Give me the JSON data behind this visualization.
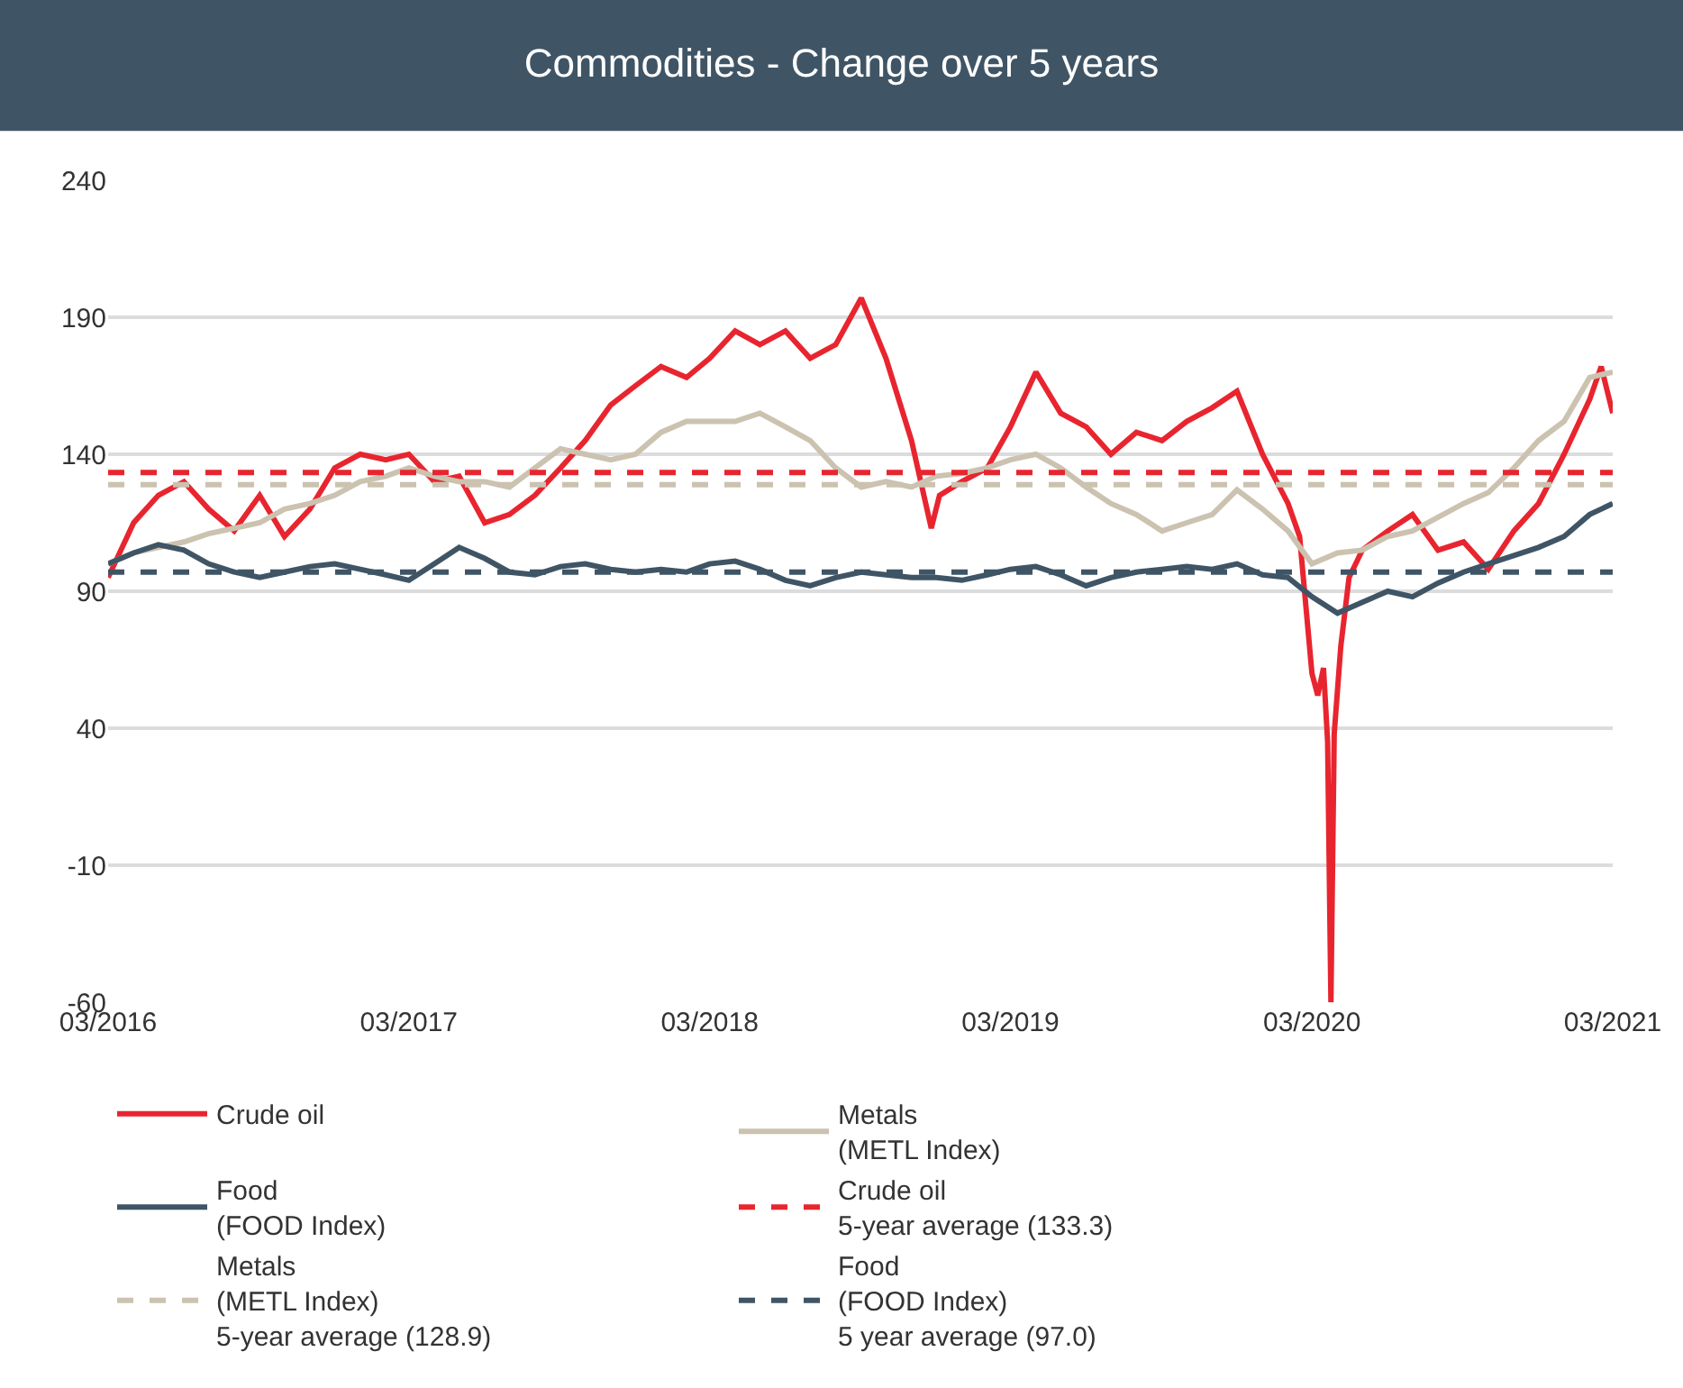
{
  "chart_data": {
    "type": "line",
    "title": "Commodities - Change over 5 years",
    "x": [
      "2016-03",
      "2016-04",
      "2016-05",
      "2016-06",
      "2016-07",
      "2016-08",
      "2016-09",
      "2016-10",
      "2016-11",
      "2016-12",
      "2017-01",
      "2017-02",
      "2017-03",
      "2017-04",
      "2017-05",
      "2017-06",
      "2017-07",
      "2017-08",
      "2017-09",
      "2017-10",
      "2017-11",
      "2017-12",
      "2018-01",
      "2018-02",
      "2018-03",
      "2018-04",
      "2018-05",
      "2018-06",
      "2018-07",
      "2018-08",
      "2018-09",
      "2018-10",
      "2018-11",
      "2018-12",
      "2019-01",
      "2019-02",
      "2019-03",
      "2019-04",
      "2019-05",
      "2019-06",
      "2019-07",
      "2019-08",
      "2019-09",
      "2019-10",
      "2019-11",
      "2019-12",
      "2020-01",
      "2020-02",
      "2020-03",
      "2020-04",
      "2020-05",
      "2020-06",
      "2020-07",
      "2020-08",
      "2020-09",
      "2020-10",
      "2020-11",
      "2020-12",
      "2021-01",
      "2021-02",
      "2021-03"
    ],
    "series": [
      {
        "name": "Crude oil",
        "color": "#e8252f",
        "x": [
          "2016-03-01",
          "2016-04-01",
          "2016-05-01",
          "2016-06-01",
          "2016-07-01",
          "2016-08-01",
          "2016-09-01",
          "2016-10-01",
          "2016-11-01",
          "2016-12-01",
          "2017-01-01",
          "2017-02-01",
          "2017-03-01",
          "2017-04-01",
          "2017-05-01",
          "2017-06-01",
          "2017-07-01",
          "2017-08-01",
          "2017-09-01",
          "2017-10-01",
          "2017-11-01",
          "2017-12-01",
          "2018-01-01",
          "2018-02-01",
          "2018-03-01",
          "2018-04-01",
          "2018-05-01",
          "2018-06-01",
          "2018-07-01",
          "2018-08-01",
          "2018-09-01",
          "2018-10-01",
          "2018-11-01",
          "2018-11-25",
          "2018-12-05",
          "2019-01-01",
          "2019-02-01",
          "2019-03-01",
          "2019-04-01",
          "2019-05-01",
          "2019-06-01",
          "2019-07-01",
          "2019-08-01",
          "2019-09-01",
          "2019-10-01",
          "2019-11-01",
          "2019-12-01",
          "2020-01-01",
          "2020-02-01",
          "2020-02-15",
          "2020-03-01",
          "2020-03-08",
          "2020-03-15",
          "2020-03-20",
          "2020-03-24",
          "2020-03-28",
          "2020-04-05",
          "2020-04-15",
          "2020-05-01",
          "2020-06-01",
          "2020-07-01",
          "2020-08-01",
          "2020-09-01",
          "2020-10-01",
          "2020-11-01",
          "2020-12-01",
          "2021-01-01",
          "2021-02-01",
          "2021-02-15",
          "2021-03-01"
        ],
        "values": [
          95,
          115,
          125,
          130,
          120,
          112,
          125,
          110,
          120,
          135,
          140,
          138,
          140,
          130,
          132,
          115,
          118,
          125,
          135,
          145,
          158,
          165,
          172,
          168,
          175,
          185,
          180,
          185,
          175,
          180,
          197,
          175,
          145,
          113,
          125,
          130,
          135,
          150,
          170,
          155,
          150,
          140,
          148,
          145,
          152,
          157,
          163,
          140,
          122,
          110,
          60,
          52,
          62,
          35,
          -60,
          38,
          70,
          95,
          105,
          112,
          118,
          105,
          108,
          98,
          112,
          122,
          140,
          160,
          172,
          155
        ]
      },
      {
        "name": "Metals\n(METL Index)",
        "color": "#cbc2b0",
        "values": [
          100,
          104,
          106,
          108,
          111,
          113,
          115,
          120,
          122,
          125,
          130,
          132,
          135,
          132,
          130,
          130,
          128,
          135,
          142,
          140,
          138,
          140,
          148,
          152,
          152,
          152,
          155,
          150,
          145,
          135,
          128,
          130,
          128,
          132,
          133,
          135,
          138,
          140,
          135,
          128,
          122,
          118,
          112,
          115,
          118,
          127,
          120,
          112,
          100,
          104,
          105,
          110,
          112,
          117,
          122,
          126,
          135,
          145,
          152,
          168,
          170
        ]
      },
      {
        "name": "Food\n(FOOD Index)",
        "color": "#3f5566",
        "values": [
          100,
          104,
          107,
          105,
          100,
          97,
          95,
          97,
          99,
          100,
          98,
          96,
          94,
          100,
          106,
          102,
          97,
          96,
          99,
          100,
          98,
          97,
          98,
          97,
          100,
          101,
          98,
          94,
          92,
          95,
          97,
          96,
          95,
          95,
          94,
          96,
          98,
          99,
          96,
          92,
          95,
          97,
          98,
          99,
          98,
          100,
          96,
          95,
          88,
          82,
          86,
          90,
          88,
          93,
          97,
          100,
          103,
          106,
          110,
          118,
          122
        ]
      }
    ],
    "ref_lines": [
      {
        "axis": "y",
        "value": 133.3,
        "label": "Crude oil\n5-year average (133.3)",
        "color": "#e8252f",
        "line_style": "dashed"
      },
      {
        "axis": "y",
        "value": 128.9,
        "label": "Metals\n(METL Index)\n5-year average (128.9)",
        "color": "#cbc2b0",
        "line_style": "dashed"
      },
      {
        "axis": "y",
        "value": 97.0,
        "label": "Food\n(FOOD Index)\n5 year average (97.0)",
        "color": "#3f5566",
        "line_style": "dashed"
      }
    ],
    "xlim": [
      "2016-03-01",
      "2021-03-01"
    ],
    "xticks": [
      {
        "value": "2016-03-01",
        "label": "03/2016"
      },
      {
        "value": "2017-03-01",
        "label": "03/2017"
      },
      {
        "value": "2018-03-01",
        "label": "03/2018"
      },
      {
        "value": "2019-03-01",
        "label": "03/2019"
      },
      {
        "value": "2020-03-01",
        "label": "03/2020"
      },
      {
        "value": "2021-03-01",
        "label": "03/2021"
      }
    ],
    "ylim": [
      -60,
      240
    ],
    "yticks": [
      -60,
      -10,
      40,
      90,
      140,
      190,
      240
    ],
    "grid": "y",
    "legend": "bottom",
    "line_style": "solid",
    "marker": "none"
  }
}
